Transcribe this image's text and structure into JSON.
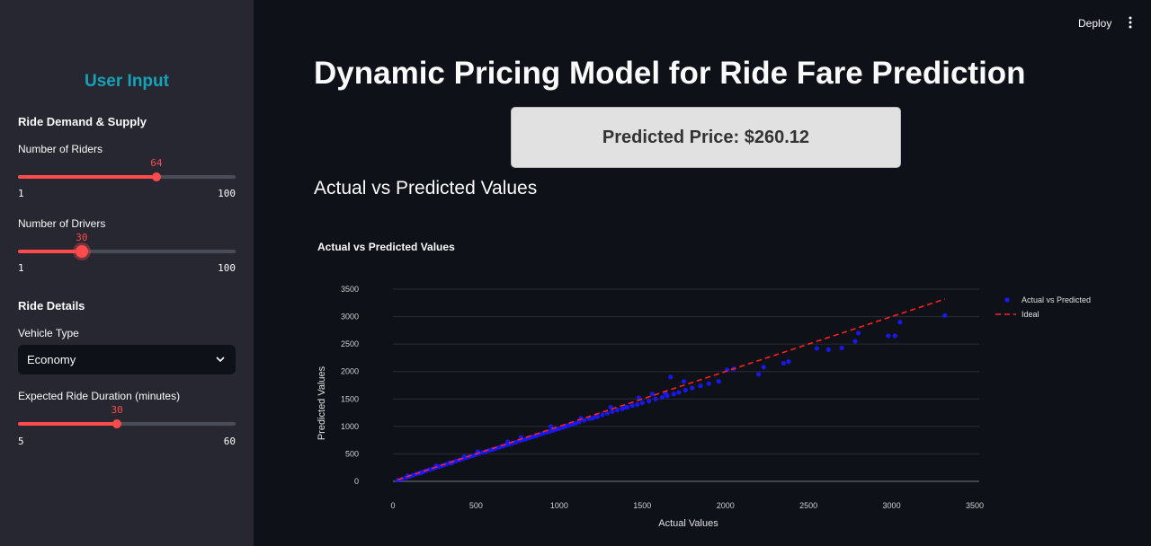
{
  "sidebar": {
    "title": "User Input",
    "section_demand": "Ride Demand & Supply",
    "riders": {
      "label": "Number of Riders",
      "value": "64",
      "min": "1",
      "max": "100",
      "fraction": 0.636
    },
    "drivers": {
      "label": "Number of Drivers",
      "value": "30",
      "min": "1",
      "max": "100",
      "fraction": 0.293
    },
    "section_details": "Ride Details",
    "vehicle": {
      "label": "Vehicle Type",
      "selected": "Economy"
    },
    "duration": {
      "label": "Expected Ride Duration (minutes)",
      "value": "30",
      "min": "5",
      "max": "60",
      "fraction": 0.455
    }
  },
  "header": {
    "deploy_label": "Deploy"
  },
  "main": {
    "title": "Dynamic Pricing Model for Ride Fare Prediction",
    "price_text": "Predicted Price: $260.12",
    "section_title": "Actual vs Predicted Values"
  },
  "chart_data": {
    "type": "scatter",
    "title": "Actual vs Predicted Values",
    "xlabel": "Actual Values",
    "ylabel": "Predicted Values",
    "xlim": [
      0,
      3500
    ],
    "ylim": [
      0,
      3500
    ],
    "xticks": [
      0,
      500,
      1000,
      1500,
      2000,
      2500,
      3000,
      3500
    ],
    "yticks": [
      0,
      500,
      1000,
      1500,
      2000,
      2500,
      3000,
      3500
    ],
    "grid": true,
    "legend_position": "top-right",
    "colors": {
      "points": "#1a1aff",
      "ideal": "#ff2020"
    },
    "series": [
      {
        "name": "Actual vs Predicted",
        "kind": "markers",
        "x": [
          30,
          55,
          80,
          100,
          120,
          140,
          160,
          180,
          200,
          220,
          240,
          260,
          280,
          300,
          320,
          340,
          360,
          380,
          400,
          420,
          440,
          460,
          480,
          500,
          520,
          540,
          560,
          580,
          600,
          620,
          640,
          660,
          680,
          700,
          720,
          740,
          760,
          780,
          800,
          820,
          840,
          860,
          880,
          900,
          920,
          940,
          960,
          980,
          1000,
          1020,
          1040,
          1060,
          1080,
          1100,
          1120,
          1150,
          1180,
          1200,
          1230,
          1260,
          1290,
          1320,
          1350,
          1380,
          1410,
          1440,
          1470,
          1500,
          1540,
          1580,
          1620,
          1650,
          1690,
          1720,
          1760,
          1800,
          1850,
          1900,
          1960,
          2050,
          2200,
          2230,
          2380,
          2550,
          2620,
          2700,
          2780,
          2800,
          2980,
          3020,
          3050,
          3320,
          90,
          170,
          260,
          350,
          430,
          510,
          600,
          690,
          770,
          860,
          950,
          1040,
          1130,
          1220,
          1310,
          1400,
          1480,
          1560,
          1640,
          1670,
          1750,
          2010,
          2350
        ],
        "y": [
          20,
          40,
          70,
          90,
          110,
          135,
          150,
          170,
          195,
          215,
          230,
          255,
          270,
          290,
          310,
          335,
          350,
          370,
          390,
          410,
          430,
          450,
          465,
          490,
          510,
          525,
          545,
          565,
          585,
          600,
          620,
          640,
          660,
          675,
          695,
          715,
          735,
          755,
          770,
          790,
          810,
          830,
          850,
          870,
          890,
          905,
          925,
          945,
          960,
          980,
          1000,
          1020,
          1040,
          1060,
          1080,
          1110,
          1140,
          1150,
          1180,
          1210,
          1240,
          1270,
          1300,
          1320,
          1350,
          1380,
          1400,
          1430,
          1460,
          1500,
          1530,
          1560,
          1590,
          1620,
          1660,
          1700,
          1740,
          1780,
          1820,
          2050,
          1950,
          2080,
          2180,
          2420,
          2400,
          2430,
          2550,
          2700,
          2650,
          2650,
          2900,
          3020,
          100,
          160,
          280,
          330,
          450,
          540,
          580,
          720,
          800,
          830,
          1000,
          1010,
          1150,
          1180,
          1350,
          1350,
          1520,
          1590,
          1600,
          1900,
          1820,
          2030,
          2150
        ]
      },
      {
        "name": "Ideal",
        "kind": "dashed-line",
        "x": [
          30,
          3320
        ],
        "y": [
          30,
          3320
        ]
      }
    ]
  }
}
